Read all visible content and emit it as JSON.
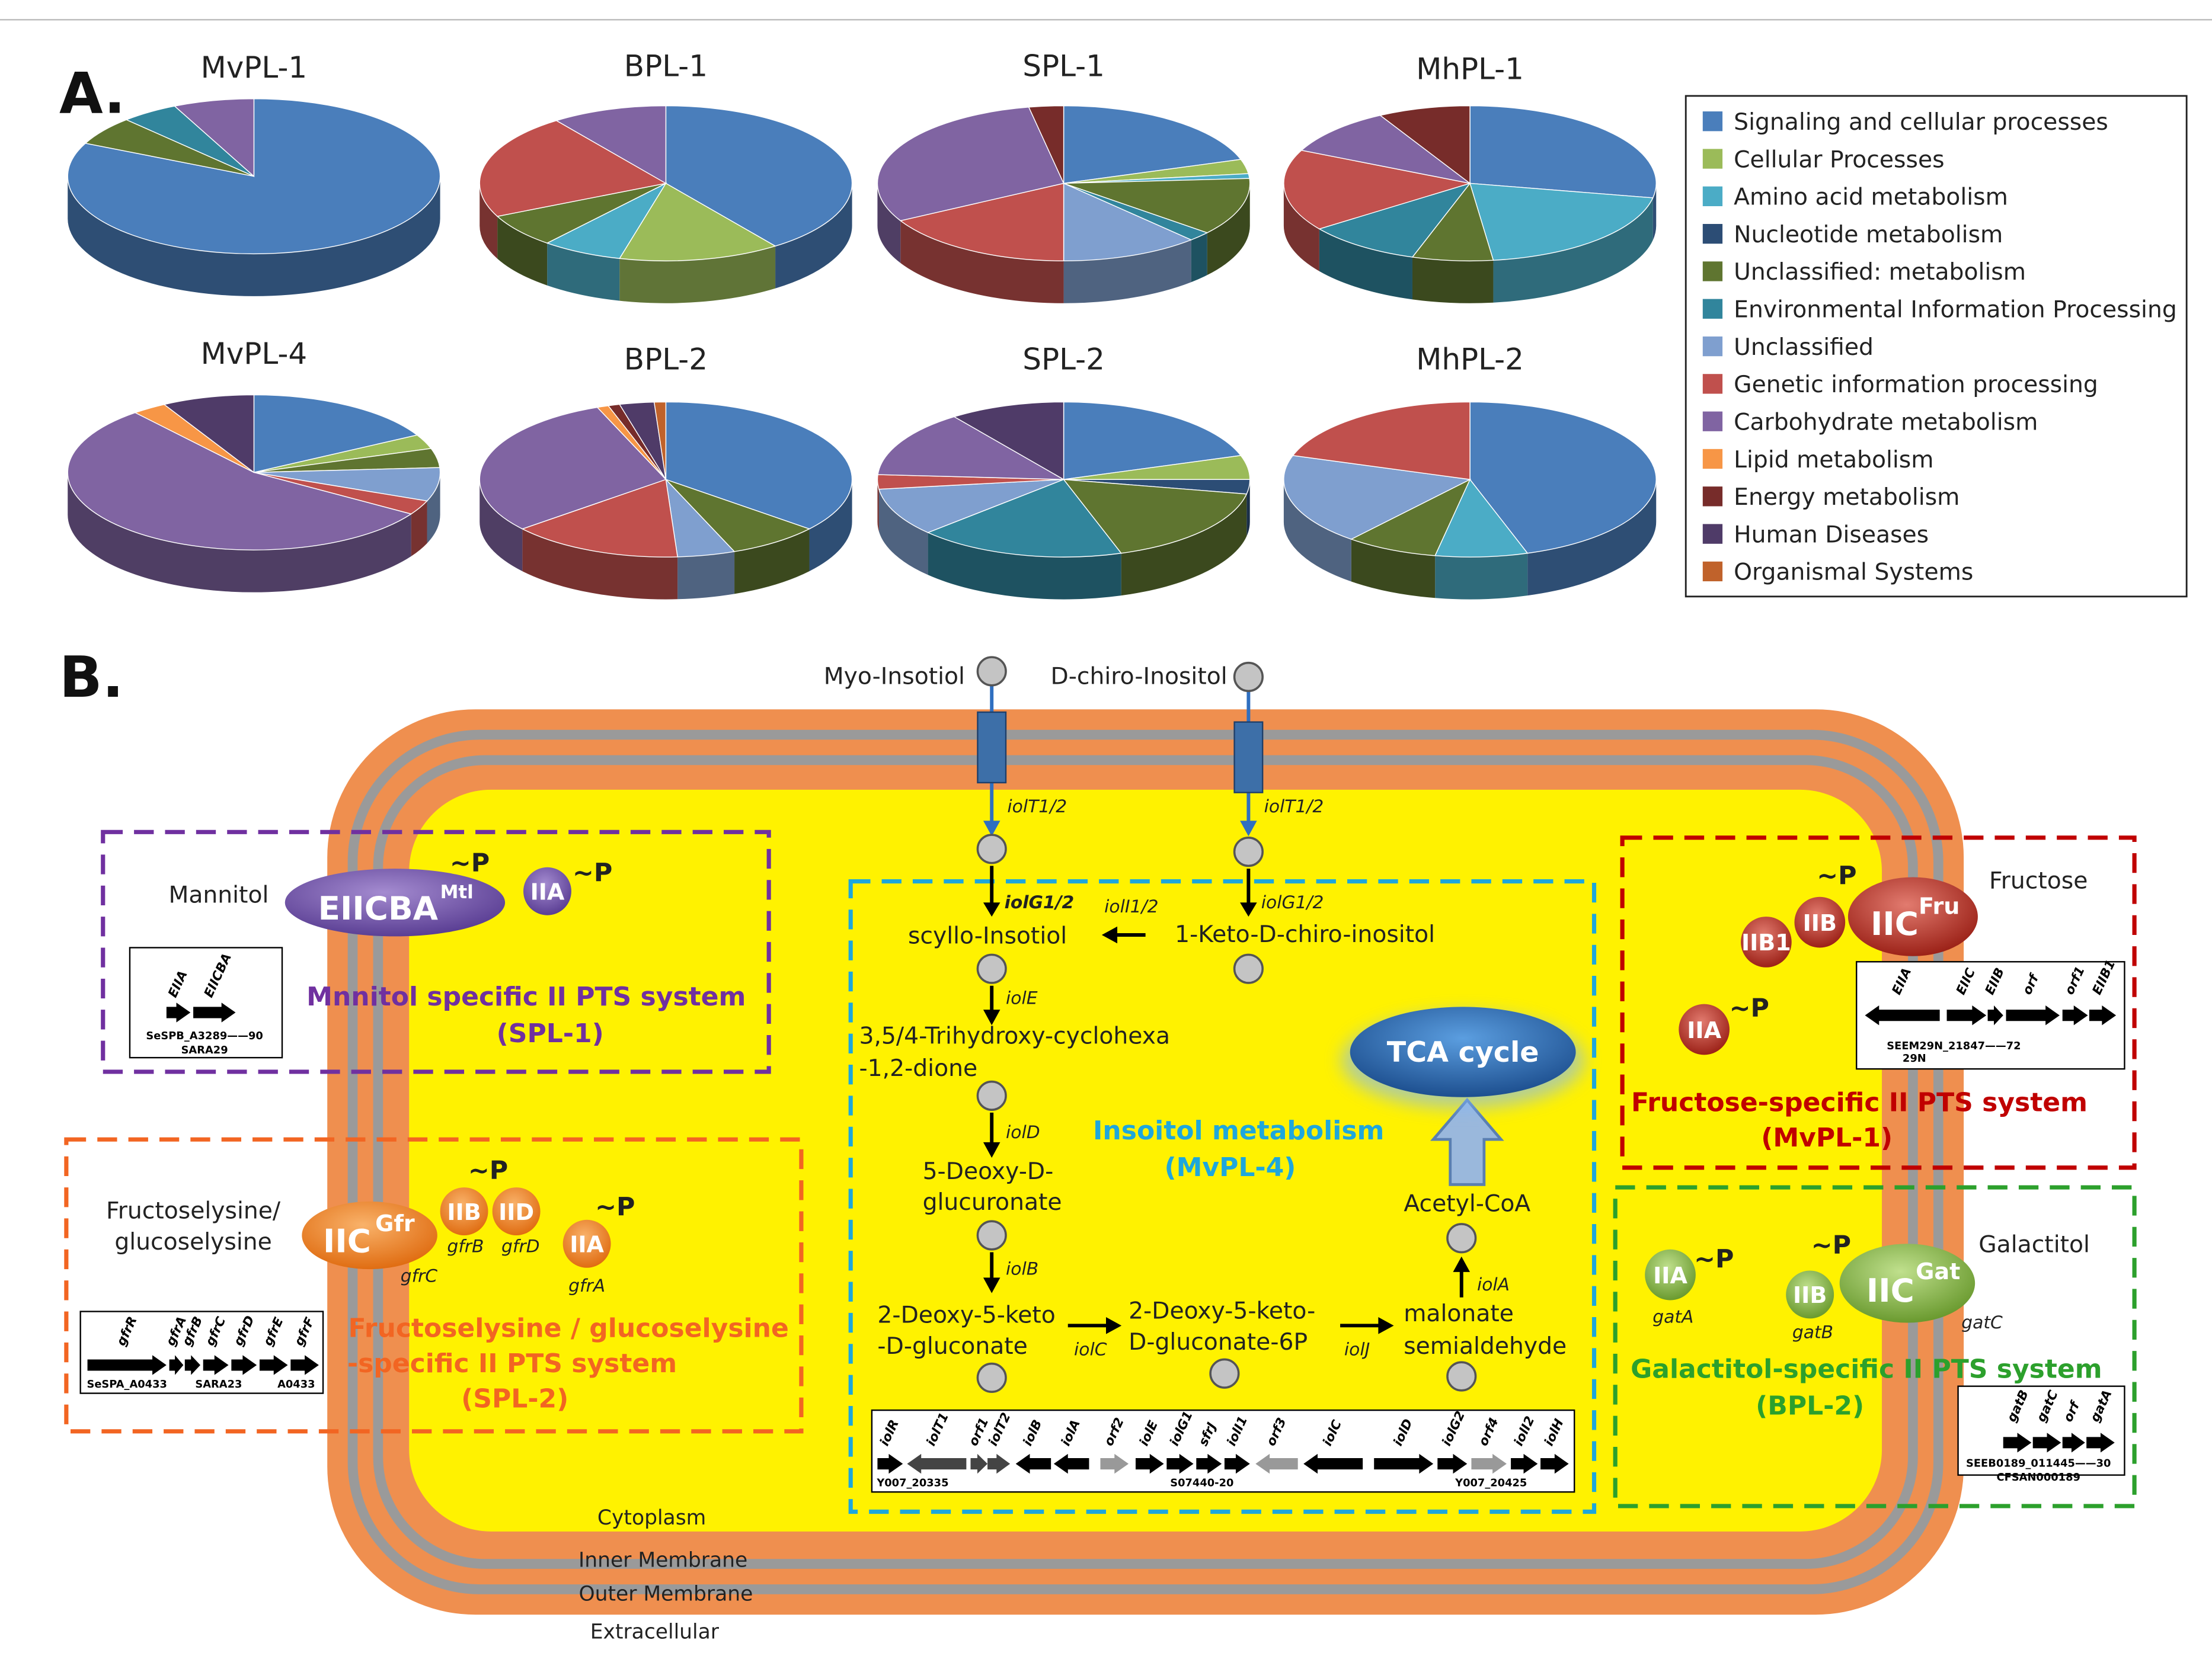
{
  "panels": {
    "a": "A.",
    "b": "B."
  },
  "legend": [
    {
      "name": "Signaling and cellular processes",
      "color": "#4a7ebb"
    },
    {
      "name": "Cellular Processes",
      "color": "#9bbb59"
    },
    {
      "name": "Amino acid metabolism",
      "color": "#4bacc6"
    },
    {
      "name": "Nucleotide metabolism",
      "color": "#2c4d75"
    },
    {
      "name": "Unclassified: metabolism",
      "color": "#5f7530"
    },
    {
      "name": "Environmental Information Processing",
      "color": "#31859c"
    },
    {
      "name": "Unclassified",
      "color": "#7f9fcf"
    },
    {
      "name": "Genetic information processing",
      "color": "#c0504d"
    },
    {
      "name": "Carbohydrate metabolism",
      "color": "#8064a2"
    },
    {
      "name": "Lipid metabolism",
      "color": "#f79646"
    },
    {
      "name": "Energy metabolism",
      "color": "#772c2a"
    },
    {
      "name": "Human Diseases",
      "color": "#4f3b68"
    },
    {
      "name": "Organismal Systems",
      "color": "#c0622b"
    }
  ],
  "chart_data": [
    {
      "type": "pie",
      "title": "MvPL-1",
      "values": [
        82,
        0,
        0,
        0,
        6,
        5,
        0,
        0,
        7,
        0,
        0,
        0,
        0
      ]
    },
    {
      "type": "pie",
      "title": "BPL-1",
      "values": [
        40,
        14,
        7,
        0,
        7,
        0,
        0,
        22,
        10,
        0,
        0,
        0,
        0
      ]
    },
    {
      "type": "pie",
      "title": "SPL-1",
      "values": [
        20,
        3,
        1,
        0,
        12,
        2,
        12,
        17,
        30,
        0,
        3,
        0,
        0
      ]
    },
    {
      "type": "pie",
      "title": "MhPL-1",
      "values": [
        28,
        0,
        20,
        0,
        7,
        10,
        0,
        17,
        10,
        0,
        8,
        0,
        0
      ]
    },
    {
      "type": "pie",
      "title": "MvPL-4",
      "values": [
        17,
        3,
        0,
        0,
        4,
        0,
        7,
        3,
        55,
        3,
        0,
        8,
        0
      ]
    },
    {
      "type": "pie",
      "title": "BPL-2",
      "values": [
        36,
        0,
        0,
        0,
        8,
        0,
        5,
        15,
        30,
        1,
        1,
        3,
        1
      ]
    },
    {
      "type": "pie",
      "title": "SPL-2",
      "values": [
        20,
        5,
        0,
        3,
        17,
        18,
        10,
        3,
        14,
        0,
        0,
        10,
        0
      ]
    },
    {
      "type": "pie",
      "title": "MhPL-2",
      "values": [
        45,
        0,
        8,
        0,
        8,
        0,
        19,
        20,
        0,
        0,
        0,
        0,
        0
      ]
    }
  ],
  "inositol": {
    "myo": "Myo-Insotiol",
    "dchiro": "D-chiro-Inositol",
    "t1": "iolT1/2",
    "t2": "iolT1/2",
    "g1": "iolG1/2",
    "g2": "iolG1/2",
    "i": "iolI1/2",
    "scyllo": "scyllo-Insotiol",
    "keto": "1-Keto-D-chiro-inositol",
    "e": "iolE",
    "thd": [
      "3,5/4-Trihydroxy-cyclohexa",
      "-1,2-dione"
    ],
    "d": "iolD",
    "ddg": [
      "5-Deoxy-D-",
      "glucuronate"
    ],
    "b": "iolB",
    "dkg": [
      "2-Deoxy-5-keto",
      "-D-gluconate"
    ],
    "c": "iolC",
    "dkgp": [
      "2-Deoxy-5-keto-",
      "D-gluconate-6P"
    ],
    "j": "iolJ",
    "ms": [
      "malonate",
      "semialdehyde"
    ],
    "a": "iolA",
    "acoa": "Acetyl-CoA",
    "tca": "TCA cycle",
    "title": [
      "Insoitol metabolism",
      "(MvPL-4)"
    ],
    "genes": [
      "iolR",
      "iolT1",
      "orf1",
      "iolT2",
      "iolB",
      "iolA",
      "orf2",
      "iolE",
      "iolG1",
      "sfrJ",
      "iolI1",
      "orf3",
      "iolC",
      "iolD",
      "iolG2",
      "orf4",
      "iolI2",
      "iolH"
    ],
    "loci": [
      "Y007_20335",
      "S07440-20",
      "Y007_20425"
    ]
  },
  "mannitol": {
    "substrate": "Mannitol",
    "enzyme": "EIICBA",
    "sup": "Mtl",
    "p1": "~P",
    "iia": "IIA",
    "p2": "~P",
    "title": [
      "Mnnitol specific II PTS system",
      "(SPL-1)"
    ],
    "genes": [
      "EIIA",
      "EIICBA"
    ],
    "loci": [
      "SeSPB_A3289——90",
      "SARA29"
    ]
  },
  "fructoselysine": {
    "substrate": [
      "Fructoselysine/",
      "glucoselysine"
    ],
    "enzyme": "IIC",
    "sup": "Gfr",
    "iib": "IIB",
    "iid": "IID",
    "p1": "~P",
    "g_b": "gfrB",
    "g_d": "gfrD",
    "g_c": "gfrC",
    "iia": "IIA",
    "p2": "~P",
    "g_a": "gfrA",
    "title": [
      "Fructoselysine / glucoselysine",
      "-specific II PTS system",
      "(SPL-2)"
    ],
    "genes": [
      "gfrR",
      "gfrA",
      "gfrB",
      "gfrC",
      "gfrD",
      "gfrE",
      "gfrF"
    ],
    "loci": [
      "SeSPA_A0433",
      "SARA23",
      "A0433"
    ]
  },
  "fructose": {
    "substrate": "Fructose",
    "iib1": "IIB1",
    "iib": "IIB",
    "p1": "~P",
    "enzyme": "IIC",
    "sup": "Fru",
    "iia": "IIA",
    "p2": "~P",
    "title": [
      "Fructose-specific II PTS system",
      "(MvPL-1)"
    ],
    "genes": [
      "EIIA",
      "EIIC",
      "EIIB",
      "orf",
      "orf1",
      "EIIB1"
    ],
    "loci": [
      "SEEM29N_21847——72",
      "29N"
    ]
  },
  "galactitol": {
    "substrate": "Galactitol",
    "iia": "IIA",
    "p1": "~P",
    "g_a": "gatA",
    "iib": "IIB",
    "p2": "~P",
    "g_b": "gatB",
    "enzyme": "IIC",
    "sup": "Gat",
    "g_c": "gatC",
    "title": [
      "Galactitol-specific II PTS system",
      "(BPL-2)"
    ],
    "genes": [
      "gatB",
      "gatC",
      "orf",
      "gatA"
    ],
    "loci": [
      "SEEB0189_011445——30",
      "CFSAN000189"
    ]
  },
  "membranes": [
    "Cytoplasm",
    "Inner Membrane",
    "Outer Membrane",
    "Extracellular"
  ]
}
